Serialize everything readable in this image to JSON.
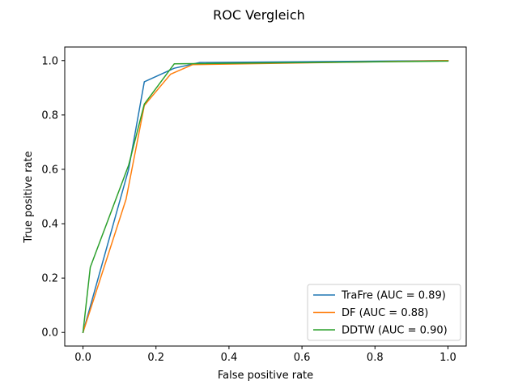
{
  "chart_data": {
    "type": "line",
    "title": "ROC Vergleich",
    "xlabel": "False positive rate",
    "ylabel": "True positive rate",
    "xlim": [
      -0.05,
      1.05
    ],
    "ylim": [
      -0.05,
      1.05
    ],
    "xticks": [
      0.0,
      0.2,
      0.4,
      0.6,
      0.8,
      1.0
    ],
    "xtick_labels": [
      "0.0",
      "0.2",
      "0.4",
      "0.6",
      "0.8",
      "1.0"
    ],
    "yticks": [
      0.0,
      0.2,
      0.4,
      0.6,
      0.8,
      1.0
    ],
    "ytick_labels": [
      "0.0",
      "0.2",
      "0.4",
      "0.6",
      "0.8",
      "1.0"
    ],
    "grid": false,
    "legend_position": "bottom-right",
    "series": [
      {
        "name": "TraFre (AUC = 0.89)",
        "color": "#1f77b4",
        "x": [
          0.0,
          0.125,
          0.168,
          0.25,
          0.32,
          1.0
        ],
        "y": [
          0.0,
          0.6,
          0.922,
          0.972,
          0.993,
          1.0
        ]
      },
      {
        "name": "DF (AUC = 0.88)",
        "color": "#ff7f0e",
        "x": [
          0.0,
          0.118,
          0.168,
          0.24,
          0.3,
          1.0
        ],
        "y": [
          0.0,
          0.49,
          0.835,
          0.95,
          0.985,
          1.0
        ]
      },
      {
        "name": "DDTW (AUC = 0.90)",
        "color": "#2ca02c",
        "x": [
          0.0,
          0.02,
          0.125,
          0.168,
          0.25,
          1.0
        ],
        "y": [
          0.0,
          0.24,
          0.615,
          0.84,
          0.988,
          0.998
        ]
      }
    ]
  }
}
